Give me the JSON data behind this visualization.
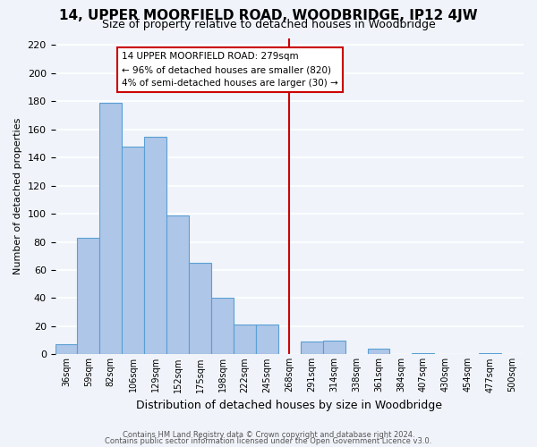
{
  "title": "14, UPPER MOORFIELD ROAD, WOODBRIDGE, IP12 4JW",
  "subtitle": "Size of property relative to detached houses in Woodbridge",
  "xlabel": "Distribution of detached houses by size in Woodbridge",
  "ylabel": "Number of detached properties",
  "bar_labels": [
    "36sqm",
    "59sqm",
    "82sqm",
    "106sqm",
    "129sqm",
    "152sqm",
    "175sqm",
    "198sqm",
    "222sqm",
    "245sqm",
    "268sqm",
    "291sqm",
    "314sqm",
    "338sqm",
    "361sqm",
    "384sqm",
    "407sqm",
    "430sqm",
    "454sqm",
    "477sqm",
    "500sqm"
  ],
  "bar_values": [
    7,
    83,
    179,
    148,
    155,
    99,
    65,
    40,
    21,
    21,
    0,
    9,
    10,
    0,
    4,
    0,
    1,
    0,
    0,
    1,
    0
  ],
  "bar_color": "#aec6e8",
  "bar_edge_color": "#5a9fd4",
  "vline_x": 10.5,
  "vline_color": "#cc0000",
  "ylim": [
    0,
    225
  ],
  "yticks": [
    0,
    20,
    40,
    60,
    80,
    100,
    120,
    140,
    160,
    180,
    200,
    220
  ],
  "annotation_title": "14 UPPER MOORFIELD ROAD: 279sqm",
  "annotation_line1": "← 96% of detached houses are smaller (820)",
  "annotation_line2": "4% of semi-detached houses are larger (30) →",
  "footer1": "Contains HM Land Registry data © Crown copyright and database right 2024.",
  "footer2": "Contains public sector information licensed under the Open Government Licence v3.0.",
  "background_color": "#f0f4fa",
  "grid_color": "#ffffff"
}
